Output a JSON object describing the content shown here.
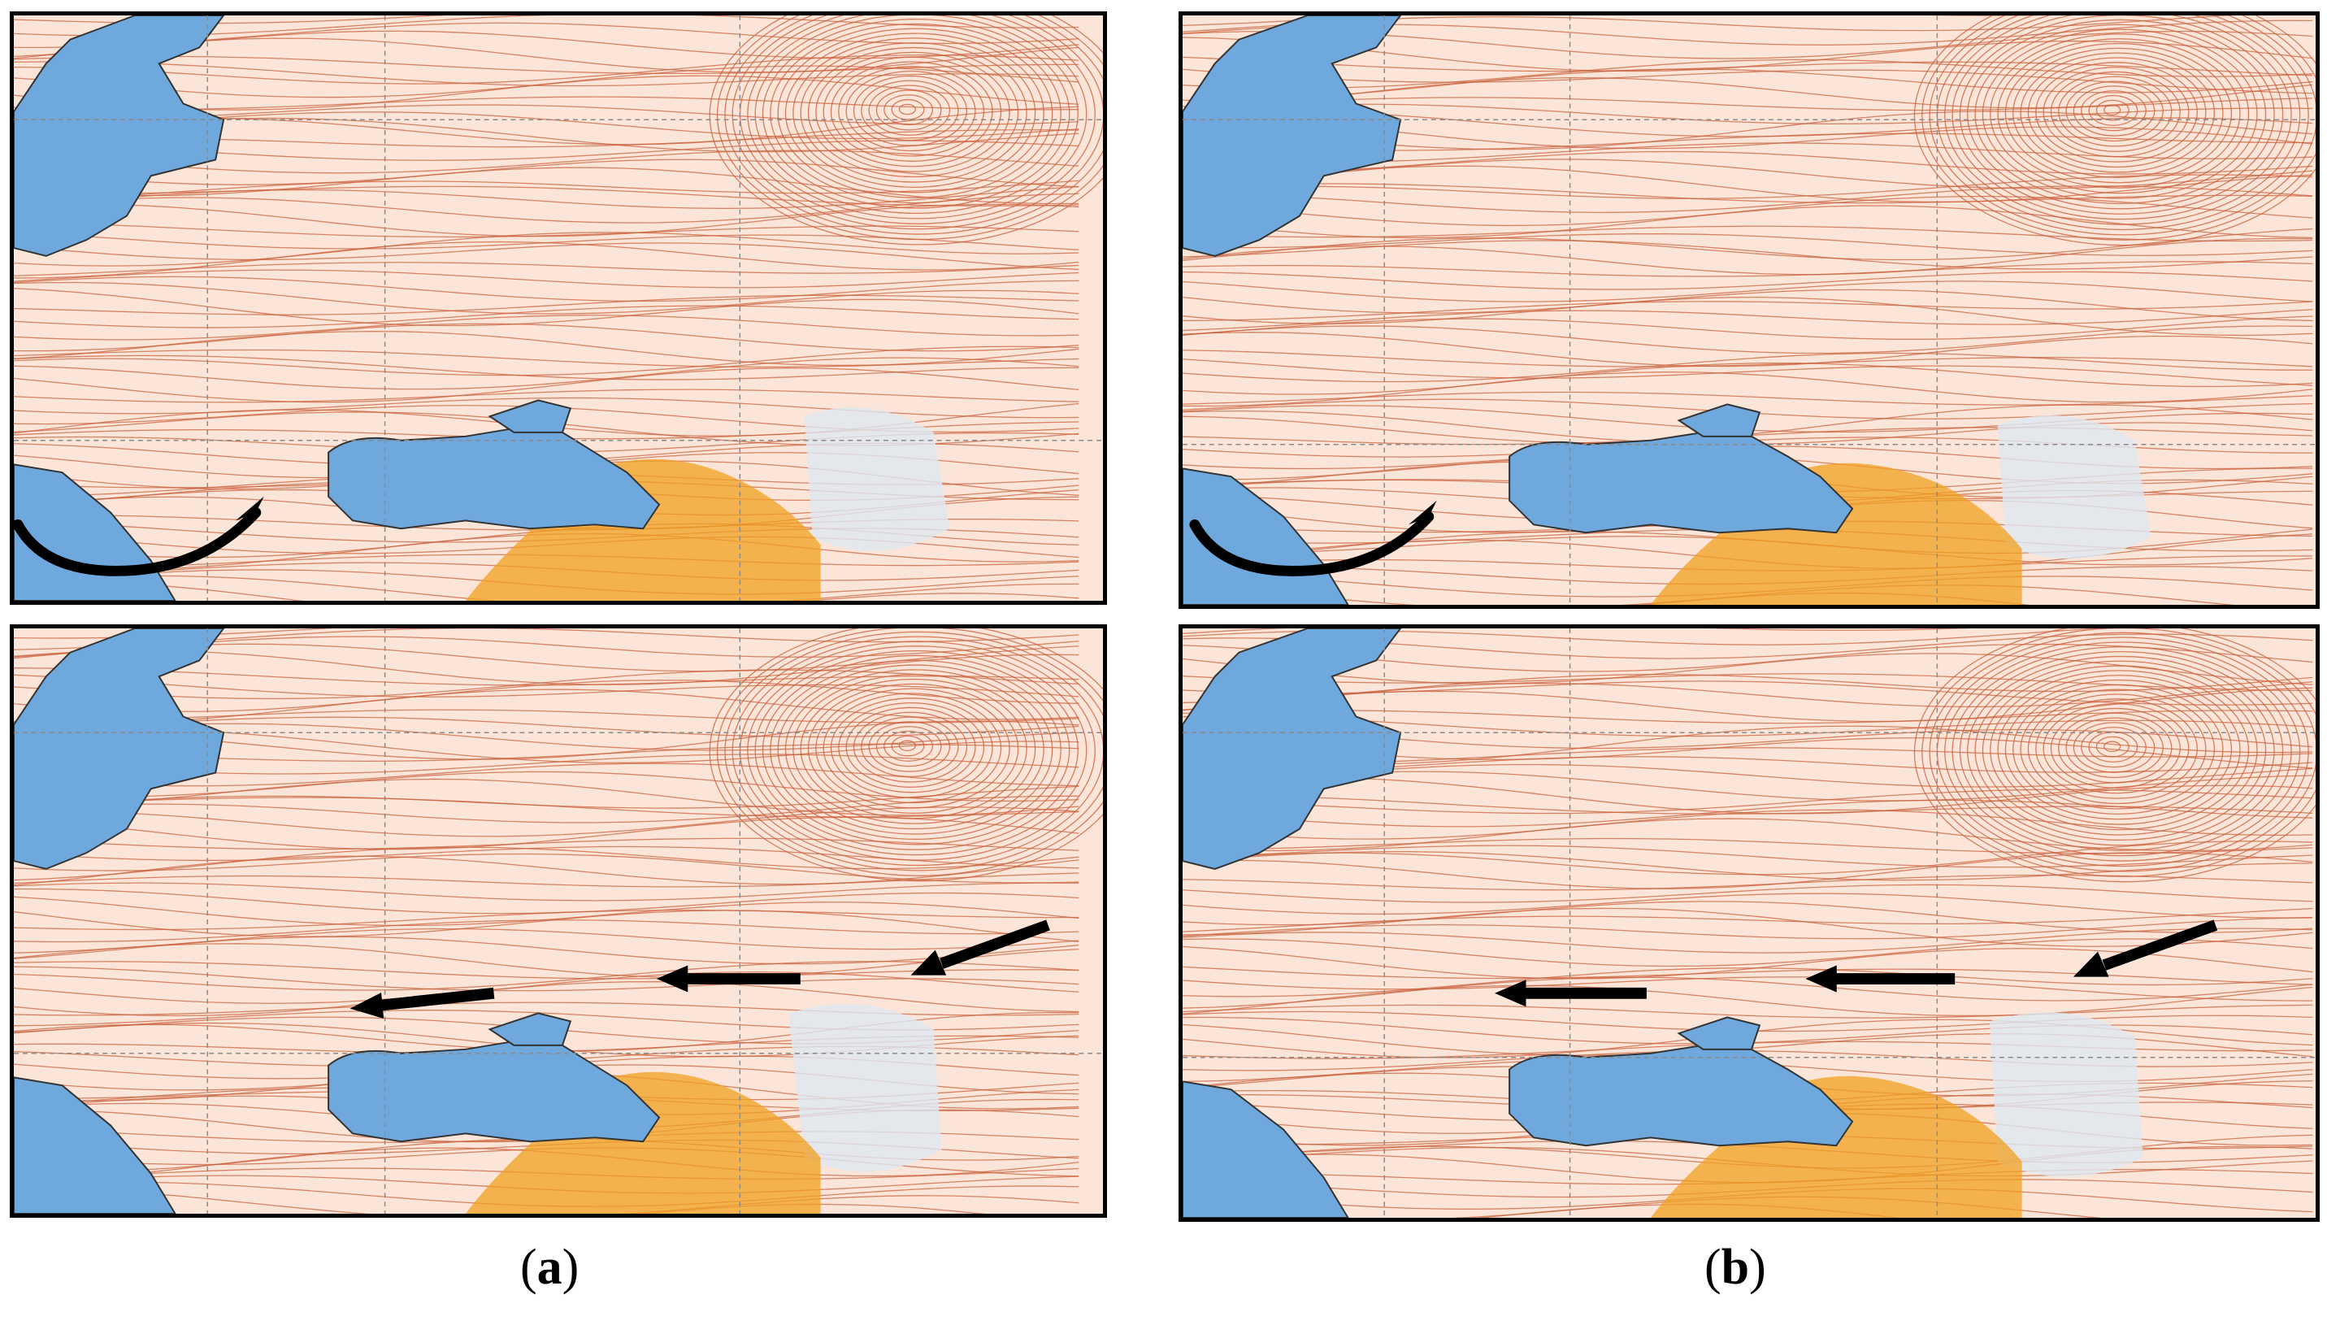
{
  "figure": {
    "caption_a": {
      "open": "(",
      "letter": "a",
      "close": ")"
    },
    "caption_b": {
      "open": "(",
      "letter": "b",
      "close": ")"
    }
  },
  "map_style": {
    "land_color": "#fbe5d8",
    "sea_color": "#6fa8dc",
    "streamline_color": "#c9603c",
    "calm_area_color": "#dfe8f3",
    "highland_color": "#f0a020",
    "grid_color": "#8a8a8a",
    "arrow_color": "#000000"
  },
  "panels": [
    {
      "id": "panel-a-top",
      "column": "a",
      "row": "top",
      "annotation": "curved-arrow"
    },
    {
      "id": "panel-a-bottom",
      "column": "a",
      "row": "bottom",
      "annotation": "three-straight-arrows"
    },
    {
      "id": "panel-b-top",
      "column": "b",
      "row": "top",
      "annotation": "curved-arrow"
    },
    {
      "id": "panel-b-bottom",
      "column": "b",
      "row": "bottom",
      "annotation": "three-straight-arrows"
    }
  ]
}
